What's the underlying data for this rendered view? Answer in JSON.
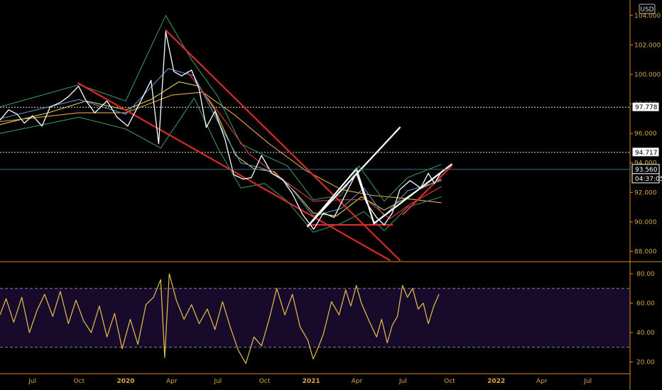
{
  "currency_label": "USD",
  "chart_data": [
    {
      "type": "line",
      "title": "",
      "y_axis_ticks": [
        88.0,
        90.0,
        92.0,
        94.0,
        96.0,
        98.0,
        100.0,
        102.0,
        104.0
      ],
      "y_tick_labels": [
        "88.000",
        "90.000",
        "92.000",
        "94.000",
        "96.000",
        "98.000",
        "100.000",
        "102.000",
        "104.000"
      ],
      "ylim": [
        87.35,
        105.05
      ],
      "x_ticks": [
        "Jul",
        "Oct",
        "2020",
        "Apr",
        "Jul",
        "Oct",
        "2021",
        "Apr",
        "Jul",
        "Oct",
        "2022",
        "Apr",
        "Jul"
      ],
      "x_tick_dates": [
        "2019-07-01",
        "2019-10-01",
        "2020-01-01",
        "2020-04-01",
        "2020-07-01",
        "2020-10-01",
        "2021-01-01",
        "2021-04-01",
        "2021-07-01",
        "2021-10-01",
        "2022-01-01",
        "2022-04-01",
        "2022-07-01"
      ],
      "xlim": [
        "2019-04-28",
        "2022-09-22"
      ],
      "horizontal_levels": [
        97.778,
        94.717
      ],
      "price_label": "93.560",
      "countdown_label": "04:37:05",
      "series": [
        {
          "color": "#ffffff",
          "points": [
            [
              "2019-04-28",
              96.9
            ],
            [
              "2019-05-15",
              97.6
            ],
            [
              "2019-06-01",
              97.3
            ],
            [
              "2019-06-15",
              96.7
            ],
            [
              "2019-07-01",
              97.2
            ],
            [
              "2019-07-20",
              96.5
            ],
            [
              "2019-08-05",
              97.8
            ],
            [
              "2019-08-25",
              98.1
            ],
            [
              "2019-09-10",
              98.5
            ],
            [
              "2019-09-30",
              99.2
            ],
            [
              "2019-10-15",
              98.2
            ],
            [
              "2019-11-01",
              97.4
            ],
            [
              "2019-11-25",
              98.2
            ],
            [
              "2019-12-15",
              97.1
            ],
            [
              "2020-01-05",
              96.5
            ],
            [
              "2020-01-25",
              97.8
            ],
            [
              "2020-02-20",
              99.6
            ],
            [
              "2020-03-06",
              95.3
            ],
            [
              "2020-03-20",
              102.9
            ],
            [
              "2020-04-05",
              100.2
            ],
            [
              "2020-04-20",
              99.9
            ],
            [
              "2020-05-10",
              100.3
            ],
            [
              "2020-05-25",
              99.0
            ],
            [
              "2020-06-08",
              96.4
            ],
            [
              "2020-06-25",
              97.5
            ],
            [
              "2020-07-15",
              95.6
            ],
            [
              "2020-08-01",
              93.2
            ],
            [
              "2020-08-20",
              92.9
            ],
            [
              "2020-09-05",
              93.0
            ],
            [
              "2020-09-25",
              94.5
            ],
            [
              "2020-10-15",
              93.3
            ],
            [
              "2020-11-05",
              92.9
            ],
            [
              "2020-11-25",
              91.9
            ],
            [
              "2020-12-15",
              90.5
            ],
            [
              "2021-01-06",
              89.5
            ],
            [
              "2021-01-25",
              90.6
            ],
            [
              "2021-02-15",
              90.3
            ],
            [
              "2021-03-10",
              91.9
            ],
            [
              "2021-03-31",
              93.3
            ],
            [
              "2021-04-20",
              91.3
            ],
            [
              "2021-05-10",
              90.3
            ],
            [
              "2021-05-25",
              89.8
            ],
            [
              "2021-06-10",
              90.6
            ],
            [
              "2021-06-25",
              92.2
            ],
            [
              "2021-07-15",
              92.8
            ],
            [
              "2021-08-05",
              92.3
            ],
            [
              "2021-08-20",
              93.3
            ],
            [
              "2021-09-01",
              92.6
            ],
            [
              "2021-09-15",
              93.4
            ]
          ]
        },
        {
          "color": "#d9d94a",
          "points": [
            [
              "2019-04-28",
              96.6
            ],
            [
              "2019-08-01",
              97.4
            ],
            [
              "2019-10-15",
              98.2
            ],
            [
              "2020-01-01",
              97.6
            ],
            [
              "2020-02-20",
              98.3
            ],
            [
              "2020-04-15",
              99.5
            ],
            [
              "2020-05-25",
              99.2
            ],
            [
              "2020-06-25",
              97.6
            ],
            [
              "2020-08-05",
              94.5
            ],
            [
              "2020-09-10",
              93.6
            ],
            [
              "2020-10-20",
              93.4
            ],
            [
              "2020-12-01",
              92.0
            ],
            [
              "2021-01-05",
              90.6
            ],
            [
              "2021-02-20",
              90.4
            ],
            [
              "2021-04-10",
              91.7
            ],
            [
              "2021-05-25",
              90.8
            ],
            [
              "2021-07-01",
              91.5
            ],
            [
              "2021-08-01",
              92.2
            ],
            [
              "2021-09-15",
              92.9
            ]
          ]
        },
        {
          "color": "#e6a84a",
          "points": [
            [
              "2019-04-28",
              96.8
            ],
            [
              "2019-10-01",
              97.4
            ],
            [
              "2020-01-01",
              97.4
            ],
            [
              "2020-04-01",
              98.6
            ],
            [
              "2020-06-01",
              98.8
            ],
            [
              "2020-08-01",
              97.3
            ],
            [
              "2020-10-10",
              95.3
            ],
            [
              "2020-12-20",
              93.5
            ],
            [
              "2021-03-01",
              92.2
            ],
            [
              "2021-05-01",
              91.8
            ],
            [
              "2021-07-01",
              91.6
            ],
            [
              "2021-09-15",
              91.3
            ]
          ]
        },
        {
          "color": "#5f8fd0",
          "points": [
            [
              "2019-04-28",
              97.0
            ],
            [
              "2019-10-01",
              98.3
            ],
            [
              "2020-01-01",
              97.3
            ],
            [
              "2020-03-25",
              100.4
            ],
            [
              "2020-05-15",
              99.9
            ],
            [
              "2020-07-01",
              96.8
            ],
            [
              "2020-08-15",
              94.0
            ],
            [
              "2020-10-01",
              93.6
            ],
            [
              "2020-11-15",
              92.6
            ],
            [
              "2021-01-05",
              90.4
            ],
            [
              "2021-03-01",
              90.9
            ],
            [
              "2021-04-15",
              92.3
            ],
            [
              "2021-05-25",
              90.4
            ],
            [
              "2021-07-10",
              92.1
            ],
            [
              "2021-09-15",
              92.8
            ]
          ]
        },
        {
          "color": "#3a8f6a",
          "points": [
            [
              "2019-04-28",
              97.8
            ],
            [
              "2019-10-01",
              99.3
            ],
            [
              "2020-01-01",
              98.2
            ],
            [
              "2020-03-20",
              104.0
            ],
            [
              "2020-05-10",
              101.0
            ],
            [
              "2020-07-01",
              98.5
            ],
            [
              "2020-08-15",
              95.3
            ],
            [
              "2020-10-01",
              94.5
            ],
            [
              "2020-11-15",
              93.8
            ],
            [
              "2021-01-05",
              91.5
            ],
            [
              "2021-03-01",
              91.8
            ],
            [
              "2021-04-05",
              93.8
            ],
            [
              "2021-05-25",
              91.4
            ],
            [
              "2021-07-10",
              93.0
            ],
            [
              "2021-09-15",
              93.9
            ]
          ]
        },
        {
          "color": "#3a8f6a",
          "points": [
            [
              "2019-04-28",
              96.0
            ],
            [
              "2019-10-01",
              97.1
            ],
            [
              "2020-01-01",
              96.3
            ],
            [
              "2020-03-10",
              95.0
            ],
            [
              "2020-05-15",
              98.4
            ],
            [
              "2020-07-01",
              95.0
            ],
            [
              "2020-08-15",
              92.3
            ],
            [
              "2020-10-01",
              92.6
            ],
            [
              "2020-11-15",
              91.4
            ],
            [
              "2021-01-05",
              89.3
            ],
            [
              "2021-03-01",
              89.9
            ],
            [
              "2021-04-15",
              90.7
            ],
            [
              "2021-05-25",
              89.4
            ],
            [
              "2021-07-10",
              91.0
            ],
            [
              "2021-09-15",
              91.7
            ]
          ]
        },
        {
          "color": "#e03a3a",
          "points": [
            [
              "2020-05-01",
              100.2
            ],
            [
              "2020-07-01",
              97.5
            ],
            [
              "2020-09-01",
              94.6
            ],
            [
              "2020-11-01",
              93.0
            ],
            [
              "2021-01-05",
              91.4
            ],
            [
              "2021-03-01",
              91.5
            ],
            [
              "2021-04-20",
              91.5
            ],
            [
              "2021-06-05",
              90.2
            ],
            [
              "2021-07-15",
              91.2
            ],
            [
              "2021-09-15",
              92.4
            ]
          ]
        }
      ],
      "trendlines": [
        {
          "color": "#d62b2b",
          "points": [
            [
              "2019-09-30",
              99.4
            ],
            [
              "2021-06-05",
              87.4
            ]
          ]
        },
        {
          "color": "#d62b2b",
          "points": [
            [
              "2020-03-20",
              103.0
            ],
            [
              "2021-06-25",
              87.4
            ]
          ]
        },
        {
          "color": "#d62b2b",
          "points": [
            [
              "2020-12-25",
              89.8
            ],
            [
              "2021-06-10",
              89.8
            ]
          ]
        },
        {
          "color": "#d62b2b",
          "points": [
            [
              "2021-07-01",
              90.5
            ],
            [
              "2021-10-05",
              93.8
            ]
          ]
        },
        {
          "color": "#ffffff",
          "points": [
            [
              "2020-12-25",
              89.7
            ],
            [
              "2021-06-25",
              96.4
            ]
          ]
        },
        {
          "color": "#ffffff",
          "points": [
            [
              "2020-12-25",
              89.7
            ],
            [
              "2021-03-31",
              93.6
            ],
            [
              "2021-05-05",
              89.9
            ],
            [
              "2021-10-05",
              93.9
            ]
          ]
        }
      ]
    },
    {
      "type": "line",
      "title": "",
      "y_axis_ticks": [
        20.0,
        40.0,
        60.0,
        80.0
      ],
      "y_tick_labels": [
        "20.00",
        "40.00",
        "60.00",
        "80.00"
      ],
      "ylim": [
        13.0,
        87.7
      ],
      "band": [
        30,
        70
      ],
      "color": "#e6c14a",
      "points": [
        [
          "2019-04-28",
          52
        ],
        [
          "2019-05-10",
          63
        ],
        [
          "2019-05-25",
          47
        ],
        [
          "2019-06-10",
          64
        ],
        [
          "2019-06-25",
          40
        ],
        [
          "2019-07-10",
          55
        ],
        [
          "2019-07-25",
          66
        ],
        [
          "2019-08-10",
          51
        ],
        [
          "2019-08-25",
          68
        ],
        [
          "2019-09-10",
          46
        ],
        [
          "2019-09-25",
          62
        ],
        [
          "2019-10-10",
          48
        ],
        [
          "2019-10-25",
          40
        ],
        [
          "2019-11-10",
          58
        ],
        [
          "2019-11-25",
          37
        ],
        [
          "2019-12-10",
          53
        ],
        [
          "2019-12-25",
          29
        ],
        [
          "2020-01-10",
          49
        ],
        [
          "2020-01-25",
          32
        ],
        [
          "2020-02-10",
          59
        ],
        [
          "2020-02-25",
          64
        ],
        [
          "2020-03-10",
          76
        ],
        [
          "2020-03-18",
          23
        ],
        [
          "2020-03-27",
          80
        ],
        [
          "2020-04-10",
          62
        ],
        [
          "2020-04-25",
          49
        ],
        [
          "2020-05-10",
          59
        ],
        [
          "2020-05-25",
          46
        ],
        [
          "2020-06-10",
          56
        ],
        [
          "2020-06-25",
          42
        ],
        [
          "2020-07-10",
          61
        ],
        [
          "2020-07-25",
          44
        ],
        [
          "2020-08-10",
          28
        ],
        [
          "2020-08-25",
          19
        ],
        [
          "2020-09-10",
          37
        ],
        [
          "2020-09-25",
          31
        ],
        [
          "2020-10-10",
          49
        ],
        [
          "2020-10-25",
          70
        ],
        [
          "2020-11-10",
          52
        ],
        [
          "2020-11-25",
          66
        ],
        [
          "2020-12-10",
          44
        ],
        [
          "2020-12-25",
          35
        ],
        [
          "2021-01-05",
          22
        ],
        [
          "2021-01-15",
          30
        ],
        [
          "2021-01-25",
          39
        ],
        [
          "2021-02-10",
          61
        ],
        [
          "2021-02-25",
          52
        ],
        [
          "2021-03-10",
          69
        ],
        [
          "2021-03-20",
          58
        ],
        [
          "2021-03-31",
          72
        ],
        [
          "2021-04-10",
          60
        ],
        [
          "2021-04-25",
          48
        ],
        [
          "2021-05-10",
          37
        ],
        [
          "2021-05-20",
          49
        ],
        [
          "2021-05-31",
          33
        ],
        [
          "2021-06-10",
          45
        ],
        [
          "2021-06-20",
          51
        ],
        [
          "2021-06-30",
          72
        ],
        [
          "2021-07-10",
          64
        ],
        [
          "2021-07-20",
          70
        ],
        [
          "2021-07-31",
          56
        ],
        [
          "2021-08-10",
          60
        ],
        [
          "2021-08-20",
          46
        ],
        [
          "2021-08-31",
          58
        ],
        [
          "2021-09-10",
          66
        ]
      ]
    }
  ]
}
